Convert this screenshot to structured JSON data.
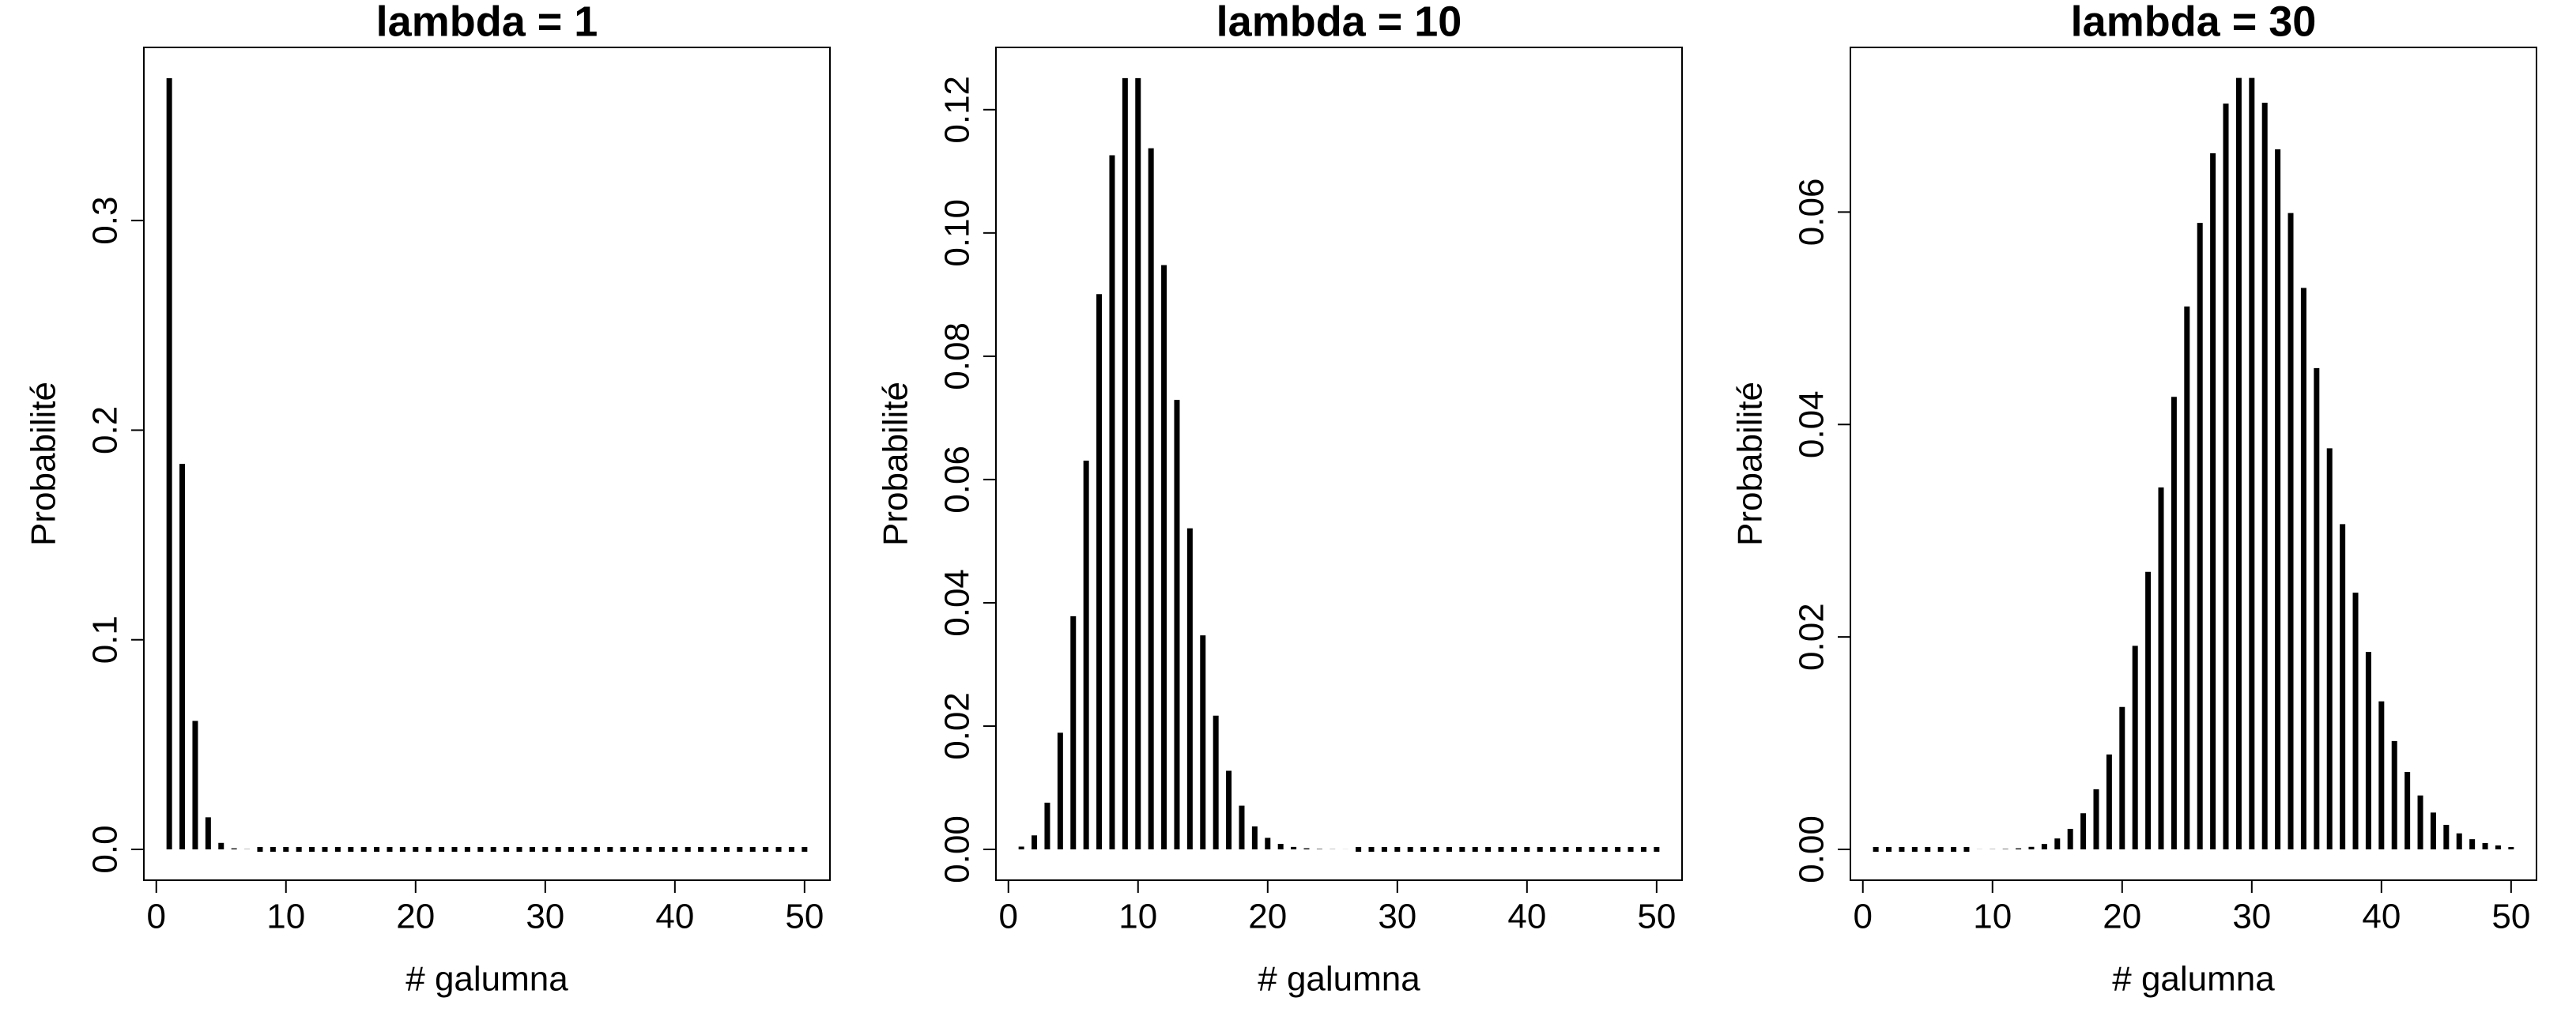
{
  "chart_data": [
    {
      "type": "bar",
      "title": "lambda = 1",
      "xlabel": "# galumna",
      "ylabel": "Probabilité",
      "color": "#000000",
      "x": [
        1,
        2,
        3,
        4,
        5,
        6,
        7,
        8,
        9,
        10,
        11,
        12,
        13,
        14,
        15,
        16,
        17,
        18,
        19,
        20,
        21,
        22,
        23,
        24,
        25,
        26,
        27,
        28,
        29,
        30,
        31,
        32,
        33,
        34,
        35,
        36,
        37,
        38,
        39,
        40,
        41,
        42,
        43,
        44,
        45,
        46,
        47,
        48,
        49,
        50
      ],
      "values": [
        0.3679,
        0.1839,
        0.0613,
        0.0153,
        0.0031,
        0.0005,
        0.0001,
        0,
        0,
        0,
        0,
        0,
        0,
        0,
        0,
        0,
        0,
        0,
        0,
        0,
        0,
        0,
        0,
        0,
        0,
        0,
        0,
        0,
        0,
        0,
        0,
        0,
        0,
        0,
        0,
        0,
        0,
        0,
        0,
        0,
        0,
        0,
        0,
        0,
        0,
        0,
        0,
        0,
        0,
        0
      ],
      "xlim": [
        -0.96,
        51.96
      ],
      "ylim": [
        -0.0147,
        0.3826
      ],
      "xticks": [
        0,
        10,
        20,
        30,
        40,
        50
      ],
      "yticks": [
        {
          "value": 0,
          "label": "0.0"
        },
        0.1,
        0.2,
        0.3
      ]
    },
    {
      "type": "bar",
      "title": "lambda = 10",
      "xlabel": "# galumna",
      "ylabel": "Probabilité",
      "color": "#000000",
      "x": [
        1,
        2,
        3,
        4,
        5,
        6,
        7,
        8,
        9,
        10,
        11,
        12,
        13,
        14,
        15,
        16,
        17,
        18,
        19,
        20,
        21,
        22,
        23,
        24,
        25,
        26,
        27,
        28,
        29,
        30,
        31,
        32,
        33,
        34,
        35,
        36,
        37,
        38,
        39,
        40,
        41,
        42,
        43,
        44,
        45,
        46,
        47,
        48,
        49,
        50
      ],
      "values": [
        0.00045,
        0.00227,
        0.00757,
        0.01892,
        0.03783,
        0.06306,
        0.09008,
        0.1126,
        0.12511,
        0.12511,
        0.11374,
        0.09478,
        0.07291,
        0.05208,
        0.03472,
        0.0217,
        0.01276,
        0.00709,
        0.00373,
        0.00187,
        0.00089,
        0.0004,
        0.00018,
        7e-05,
        3e-05,
        1e-05,
        0,
        0,
        0,
        0,
        0,
        0,
        0,
        0,
        0,
        0,
        0,
        0,
        0,
        0,
        0,
        0,
        0,
        0,
        0,
        0,
        0,
        0,
        0,
        0
      ],
      "xlim": [
        -0.96,
        51.96
      ],
      "ylim": [
        -0.005,
        0.1301
      ],
      "xticks": [
        0,
        10,
        20,
        30,
        40,
        50
      ],
      "yticks": [
        {
          "value": 0,
          "label": "0.00"
        },
        0.02,
        0.04,
        0.06,
        0.08,
        {
          "value": 0.1,
          "label": "0.10"
        },
        0.12
      ]
    },
    {
      "type": "bar",
      "title": "lambda = 30",
      "xlabel": "# galumna",
      "ylabel": "Probabilité",
      "color": "#000000",
      "x": [
        1,
        2,
        3,
        4,
        5,
        6,
        7,
        8,
        9,
        10,
        11,
        12,
        13,
        14,
        15,
        16,
        17,
        18,
        19,
        20,
        21,
        22,
        23,
        24,
        25,
        26,
        27,
        28,
        29,
        30,
        31,
        32,
        33,
        34,
        35,
        36,
        37,
        38,
        39,
        40,
        41,
        42,
        43,
        44,
        45,
        46,
        47,
        48,
        49,
        50
      ],
      "values": [
        0,
        0,
        0,
        0,
        0,
        0,
        0,
        0,
        1e-05,
        2e-05,
        4e-05,
        0.0001,
        0.00024,
        0.00051,
        0.00103,
        0.00193,
        0.0034,
        0.00566,
        0.00894,
        0.01341,
        0.01916,
        0.02613,
        0.03408,
        0.0426,
        0.05111,
        0.05898,
        0.06553,
        0.07021,
        0.07263,
        0.07263,
        0.07029,
        0.0659,
        0.05991,
        0.05286,
        0.04531,
        0.03776,
        0.03062,
        0.02417,
        0.01859,
        0.01394,
        0.0102,
        0.00729,
        0.00508,
        0.00347,
        0.00231,
        0.00151,
        0.00096,
        0.0006,
        0.00037,
        0.00022
      ],
      "xlim": [
        -0.96,
        51.96
      ],
      "ylim": [
        -0.0029,
        0.0755
      ],
      "xticks": [
        0,
        10,
        20,
        30,
        40,
        50
      ],
      "yticks": [
        {
          "value": 0,
          "label": "0.00"
        },
        0.02,
        0.04,
        0.06
      ]
    }
  ]
}
